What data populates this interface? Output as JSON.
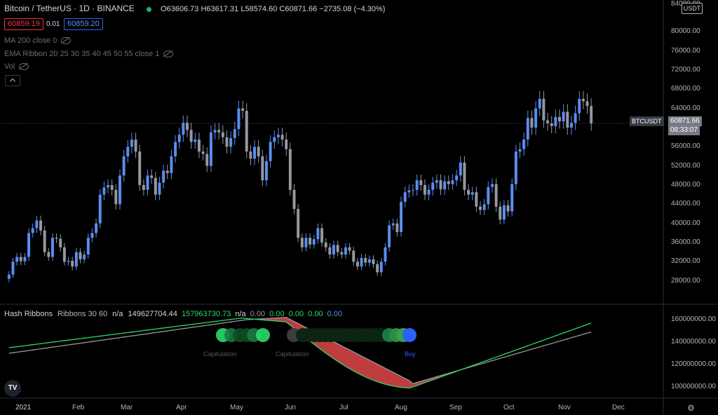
{
  "header": {
    "symbol_title": "Bitcoin / TetherUS · 1D · BINANCE",
    "ohlc": "O63606.73 H63617.31 L58574.60 C60871.66 −2735.08 (−4.30%)",
    "bid": "60859.19",
    "spread": "0.01",
    "ask": "60859.20"
  },
  "indicators": {
    "ma": "MA 200 close 0",
    "ema_ribbon": "EMA Ribbon 20 25 30 35 40 45 50 55 close 1",
    "vol": "Vol"
  },
  "price_axis": {
    "currency": "USDT",
    "top_partial": "84000.00",
    "ticks": [
      "80000.00",
      "76000.00",
      "72000.00",
      "68000.00",
      "64000.00",
      "60000.00",
      "56000.00",
      "52000.00",
      "48000.00",
      "44000.00",
      "40000.00",
      "36000.00",
      "32000.00",
      "28000.00"
    ],
    "symbol_tag": "BTCUSDT",
    "last_price": "60871.66",
    "countdown": "08:33:07"
  },
  "hash_pane": {
    "title": "Hash Ribbons",
    "params": "Ribbons 30 60",
    "v1": "n/a",
    "v2": "149627704.44",
    "v3": "157963730.73",
    "v4": "n/a",
    "v5": "0.00",
    "v6": "0.00",
    "v7": "0.00",
    "v8": "0.00",
    "v9": "0.00",
    "ticks": [
      "160000000.00",
      "140000000.00",
      "120000000.00",
      "100000000.00"
    ],
    "labels": {
      "capitulation1": "Capitulation",
      "capitulation2": "Capitulation",
      "buy": "Buy"
    }
  },
  "time_axis": [
    "2021",
    "Feb",
    "Mar",
    "Apr",
    "May",
    "Jun",
    "Jul",
    "Aug",
    "Sep",
    "Oct",
    "Nov",
    "Dec"
  ],
  "colors": {
    "up": "#5b8def",
    "down": "#9598a1",
    "fast": "#2bd96b",
    "slow": "#9598a1",
    "cap": "#e04848",
    "buy": "#2962ff"
  },
  "chart_data": {
    "type": "candlestick",
    "closes": [
      29300,
      32000,
      33000,
      32100,
      33000,
      38000,
      39000,
      40600,
      38500,
      34000,
      33000,
      37000,
      36800,
      35000,
      32000,
      32200,
      31000,
      34000,
      32500,
      33500,
      37000,
      38000,
      40000,
      46000,
      47500,
      48000,
      47000,
      44000,
      50000,
      54000,
      56000,
      57500,
      55000,
      48000,
      47000,
      50000,
      49500,
      46000,
      48500,
      51000,
      50500,
      54000,
      57000,
      58500,
      61000,
      59500,
      57000,
      57500,
      55000,
      54500,
      52000,
      59000,
      59500,
      59000,
      58000,
      56000,
      57800,
      59700,
      64000,
      63500,
      55000,
      53500,
      56000,
      54000,
      49000,
      53000,
      57000,
      58000,
      58500,
      57500,
      55500,
      47000,
      43000,
      37000,
      35000,
      37000,
      35600,
      36700,
      39000,
      36000,
      35000,
      33500,
      35500,
      34000,
      33500,
      35000,
      34300,
      32000,
      31000,
      32800,
      31800,
      32500,
      31500,
      29800,
      32000,
      35000,
      39600,
      40000,
      38200,
      44500,
      46500,
      46900,
      47000,
      49000,
      48000,
      46000,
      47000,
      48500,
      49000,
      47100,
      48800,
      48200,
      49000,
      50000,
      52700,
      47000,
      46000,
      46500,
      43500,
      42800,
      44000,
      47600,
      48200,
      43500,
      40800,
      43800,
      42500,
      48200,
      55000,
      55500,
      57500,
      62000,
      60000,
      64000,
      66000,
      61500,
      60900,
      60300,
      62200,
      61300,
      63300,
      60000,
      61000,
      63000,
      66000,
      65500,
      64500,
      60871.66
    ],
    "price_range": [
      24000,
      84000
    ],
    "hash_range": [
      90000000,
      170000000
    ]
  }
}
